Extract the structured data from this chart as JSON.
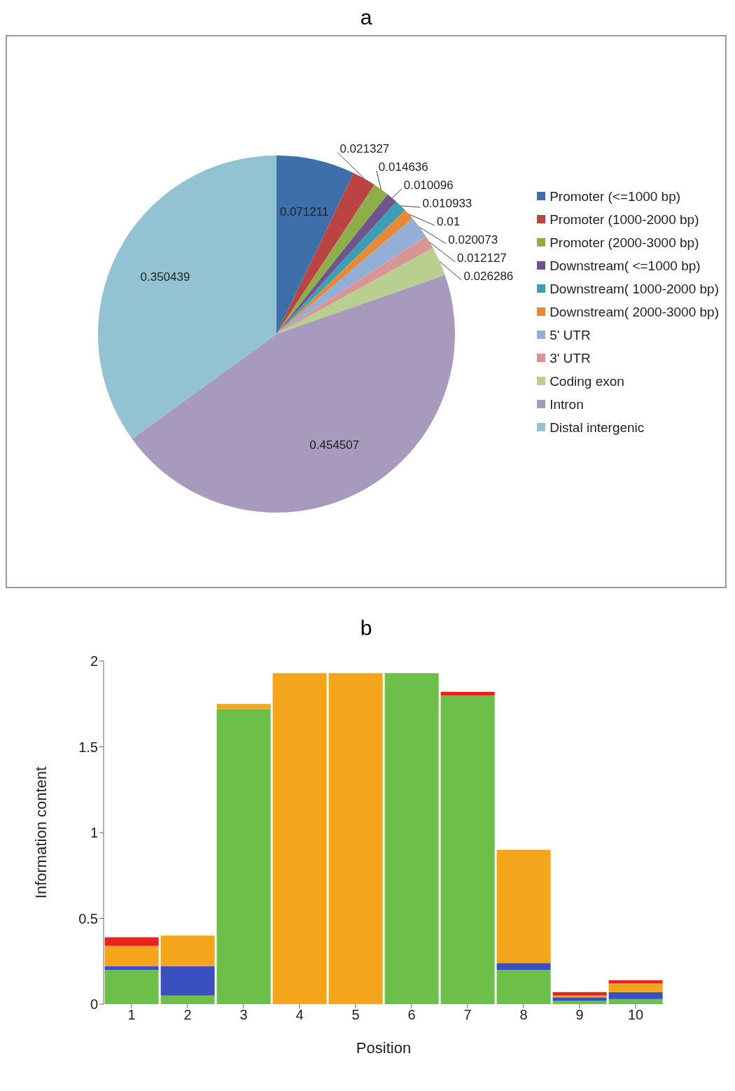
{
  "chart_data": [
    {
      "type": "pie",
      "title": "a",
      "categories": [
        "Promoter (<=1000 bp)",
        "Promoter (1000-2000 bp)",
        "Promoter (2000-3000 bp)",
        "Downstream( <=1000 bp)",
        "Downstream( 1000-2000 bp)",
        "Downstream( 2000-3000 bp)",
        "5' UTR",
        "3' UTR",
        "Coding exon",
        "Intron",
        "Distal intergenic"
      ],
      "values": [
        0.071211,
        0.021327,
        0.014636,
        0.010096,
        0.010933,
        0.01,
        0.020073,
        0.012127,
        0.026286,
        0.454507,
        0.350439
      ],
      "colors": [
        "#3f6fa8",
        "#b94443",
        "#8fae4a",
        "#6e558f",
        "#3b9eb5",
        "#e58a3a",
        "#95aed5",
        "#d99593",
        "#b8d08f",
        "#a79abd",
        "#93c3d3"
      ],
      "data_labels": true,
      "legend": "right"
    },
    {
      "type": "bar",
      "title": "b",
      "stacked": true,
      "xlabel": "Position",
      "ylabel": "Information content",
      "categories": [
        "1",
        "2",
        "3",
        "4",
        "5",
        "6",
        "7",
        "8",
        "9",
        "10"
      ],
      "series": [
        {
          "color": "#6cc04a",
          "values": [
            0.2,
            0.05,
            1.72,
            0,
            0,
            1.93,
            1.8,
            0.2,
            0.02,
            0.03
          ]
        },
        {
          "color": "#3a4fc0",
          "values": [
            0.02,
            0.17,
            0,
            0,
            0,
            0,
            0,
            0.04,
            0.02,
            0.04
          ]
        },
        {
          "color": "#f4a51c",
          "values": [
            0.12,
            0.18,
            0.03,
            1.93,
            1.93,
            0,
            0,
            0.66,
            0.01,
            0.05
          ]
        },
        {
          "color": "#e8231f",
          "values": [
            0.05,
            0,
            0,
            0,
            0,
            0,
            0.02,
            0,
            0.02,
            0.02
          ]
        }
      ],
      "ylim": [
        0,
        2
      ],
      "yticks": [
        0,
        0.5,
        1,
        1.5,
        2
      ],
      "grid": false
    }
  ]
}
